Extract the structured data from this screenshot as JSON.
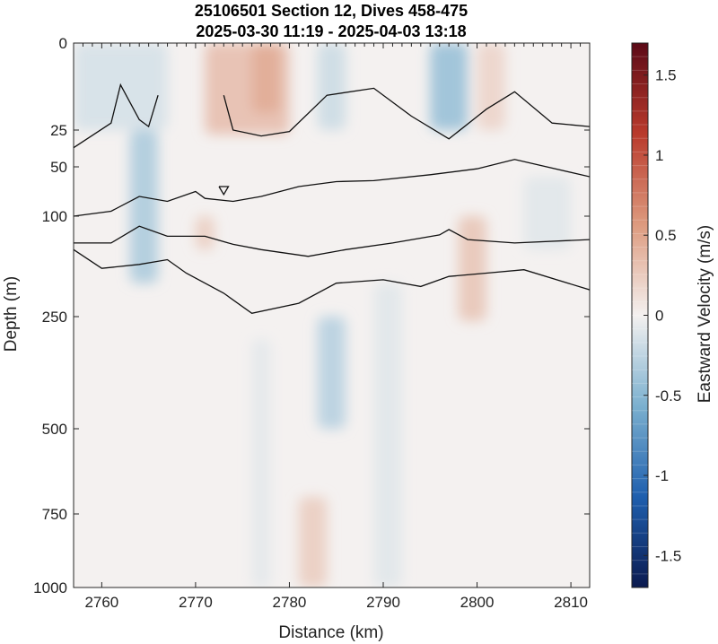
{
  "chart_data": {
    "type": "heatmap",
    "title": "25106501 Section 12, Dives 458-475",
    "subtitle": "2025-03-30 11:19 - 2025-04-03 13:18",
    "xlabel": "Distance (km)",
    "ylabel": "Depth (m)",
    "colorbar_label": "Eastward Velocity (m/s)",
    "xlim": [
      2757,
      2812
    ],
    "x_ticks": [
      "2760",
      "2770",
      "2780",
      "2790",
      "2800",
      "2810"
    ],
    "y_ticks": [
      "0",
      "25",
      "50",
      "100",
      "250",
      "500",
      "750",
      "1000"
    ],
    "colorbar_range": [
      -1.7,
      1.7
    ],
    "colorbar_ticks": [
      "1.5",
      "1",
      "0.5",
      "0",
      "-0.5",
      "-1",
      "-1.5"
    ],
    "colormap": [
      "#0b1a4f",
      "#1f5fae",
      "#7bb0cf",
      "#f4f1f0",
      "#dd9a7e",
      "#b93a2c",
      "#5c0a17"
    ],
    "features": [
      {
        "x": [
          2757,
          2767
        ],
        "z": [
          0,
          25
        ],
        "value": -0.15
      },
      {
        "x": [
          2763,
          2766
        ],
        "z": [
          25,
          200
        ],
        "value": -0.35
      },
      {
        "x": [
          2771,
          2780
        ],
        "z": [
          0,
          28
        ],
        "value": 0.35
      },
      {
        "x": [
          2776,
          2779
        ],
        "z": [
          0,
          20
        ],
        "value": 0.45
      },
      {
        "x": [
          2783,
          2786
        ],
        "z": [
          0,
          25
        ],
        "value": -0.2
      },
      {
        "x": [
          2795,
          2799
        ],
        "z": [
          0,
          25
        ],
        "value": -0.45
      },
      {
        "x": [
          2800,
          2803
        ],
        "z": [
          0,
          25
        ],
        "value": 0.2
      },
      {
        "x": [
          2783,
          2786
        ],
        "z": [
          250,
          500
        ],
        "value": -0.3
      },
      {
        "x": [
          2798,
          2801
        ],
        "z": [
          100,
          260
        ],
        "value": 0.3
      },
      {
        "x": [
          2781,
          2784
        ],
        "z": [
          700,
          1000
        ],
        "value": 0.25
      },
      {
        "x": [
          2770,
          2772
        ],
        "z": [
          100,
          150
        ],
        "value": 0.25
      },
      {
        "x": [
          2776,
          2778
        ],
        "z": [
          300,
          1000
        ],
        "value": -0.08
      },
      {
        "x": [
          2789,
          2792
        ],
        "z": [
          200,
          1000
        ],
        "value": -0.1
      },
      {
        "x": [
          2805,
          2810
        ],
        "z": [
          60,
          150
        ],
        "value": -0.1
      }
    ],
    "contours": [
      {
        "x": [
          2757,
          2761,
          2762,
          2764,
          2765,
          2766
        ],
        "depth": [
          37,
          23,
          12,
          22,
          24,
          15
        ]
      },
      {
        "x": [
          2773,
          2774,
          2777,
          2780,
          2784,
          2789,
          2793,
          2797,
          2801,
          2804,
          2808,
          2812
        ],
        "depth": [
          15,
          25,
          29,
          26,
          15,
          13,
          21,
          31,
          19,
          14,
          23,
          24
        ]
      },
      {
        "x": [
          2757,
          2761,
          2764,
          2767,
          2770,
          2771,
          2774,
          2777,
          2781,
          2785,
          2789,
          2795,
          2800,
          2804,
          2812
        ],
        "depth": [
          100,
          95,
          80,
          85,
          75,
          82,
          85,
          80,
          70,
          65,
          64,
          58,
          52,
          45,
          60
        ]
      },
      {
        "x": [
          2772.5,
          2773,
          2773.5,
          2772.5
        ],
        "depth": [
          70,
          78,
          70,
          70
        ]
      },
      {
        "x": [
          2757,
          2761,
          2764,
          2767,
          2771,
          2774,
          2777,
          2782,
          2786,
          2791,
          2796,
          2797,
          2799,
          2804,
          2812
        ],
        "depth": [
          140,
          140,
          115,
          130,
          130,
          142,
          150,
          160,
          150,
          140,
          128,
          120,
          135,
          140,
          135
        ]
      },
      {
        "x": [
          2757,
          2760,
          2764,
          2767,
          2769,
          2773,
          2776,
          2781,
          2785,
          2790,
          2794,
          2797,
          2801,
          2805,
          2812
        ],
        "depth": [
          150,
          178,
          172,
          165,
          185,
          215,
          245,
          230,
          200,
          195,
          205,
          190,
          185,
          180,
          210
        ]
      }
    ]
  }
}
